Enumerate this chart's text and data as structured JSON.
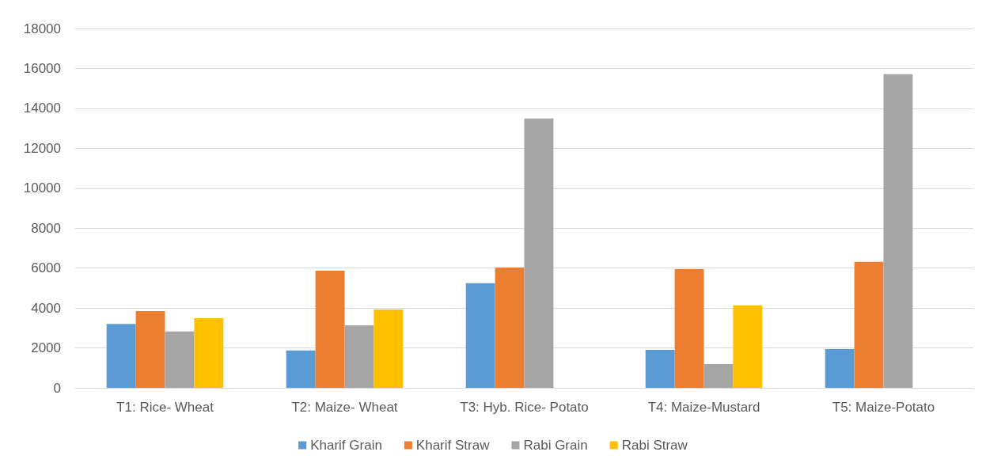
{
  "chart_data": {
    "type": "bar",
    "categories": [
      "T1: Rice- Wheat",
      "T2: Maize- Wheat",
      "T3: Hyb. Rice- Potato",
      "T4: Maize-Mustard",
      "T5: Maize-Potato"
    ],
    "series": [
      {
        "name": "Kharif Grain",
        "color": "#5b9bd5",
        "values": [
          3200,
          1870,
          5240,
          1900,
          1940
        ]
      },
      {
        "name": "Kharif Straw",
        "color": "#ed7d31",
        "values": [
          3850,
          5870,
          6030,
          5950,
          6310
        ]
      },
      {
        "name": "Rabi Grain",
        "color": "#a5a5a5",
        "values": [
          2820,
          3130,
          13490,
          1190,
          15710
        ]
      },
      {
        "name": "Rabi Straw",
        "color": "#ffc000",
        "values": [
          3490,
          3930,
          null,
          4130,
          null
        ]
      }
    ],
    "ylim": [
      0,
      18000
    ],
    "yticks": [
      0,
      2000,
      4000,
      6000,
      8000,
      10000,
      12000,
      14000,
      16000,
      18000
    ],
    "grid": "y",
    "legend": "bottom"
  }
}
